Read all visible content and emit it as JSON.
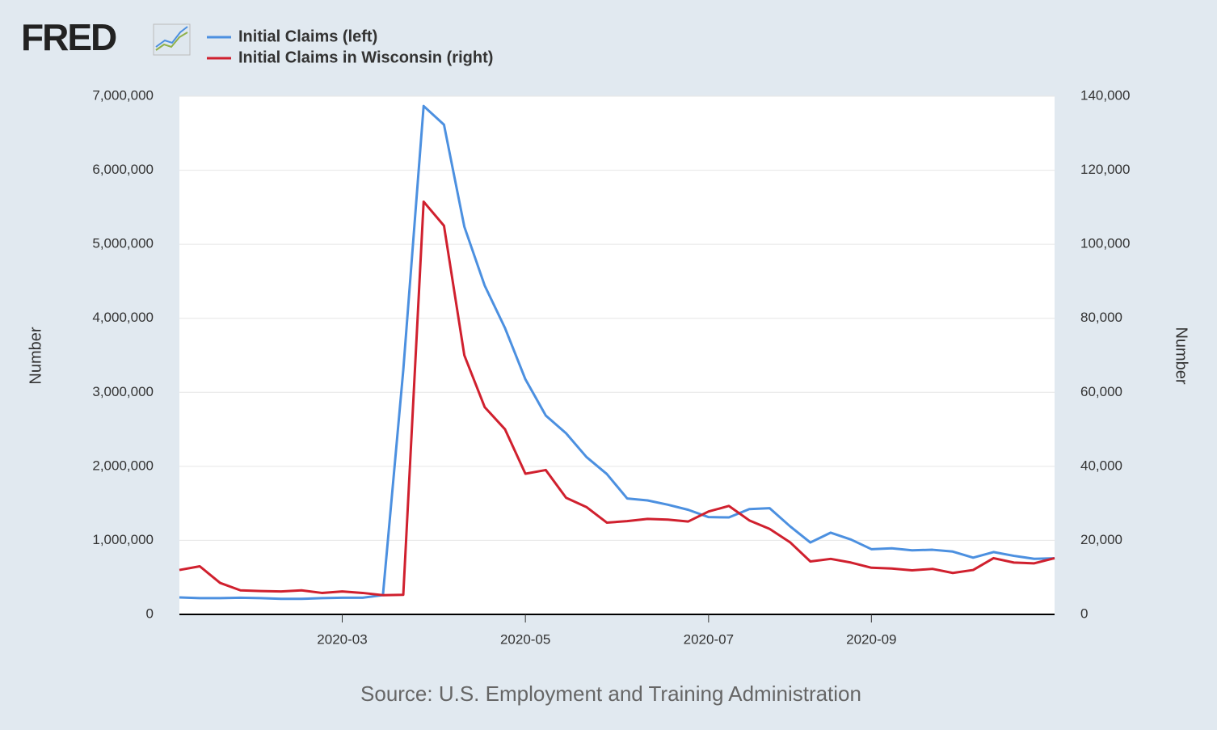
{
  "chart_data": {
    "type": "line",
    "logo": "FRED",
    "source": "Source: U.S. Employment and Training Administration",
    "y_label": "Number",
    "y2_label": "Number",
    "categories": [
      null,
      null,
      null,
      null,
      null,
      null,
      null,
      null,
      "2020-03",
      null,
      null,
      null,
      null,
      null,
      null,
      null,
      null,
      "2020-05",
      null,
      null,
      null,
      null,
      null,
      null,
      null,
      null,
      "2020-07",
      null,
      null,
      null,
      null,
      null,
      null,
      null,
      "2020-09",
      null,
      null,
      null,
      null,
      null,
      null,
      null,
      null,
      null
    ],
    "ylim": [
      0,
      7000000
    ],
    "yticks": [
      0,
      {
        "value": 1000000,
        "label": "1,000,000"
      },
      {
        "value": 2000000,
        "label": "2,000,000"
      },
      {
        "value": 3000000,
        "label": "3,000,000"
      },
      {
        "value": 4000000,
        "label": "4,000,000"
      },
      {
        "value": 5000000,
        "label": "5,000,000"
      },
      {
        "value": 6000000,
        "label": "6,000,000"
      },
      {
        "value": 7000000,
        "label": "7,000,000"
      }
    ],
    "y2lim": [
      0,
      140000
    ],
    "y2ticks": [
      0,
      {
        "value": 20000,
        "label": "20,000"
      },
      {
        "value": 40000,
        "label": "40,000"
      },
      {
        "value": 60000,
        "label": "60,000"
      },
      {
        "value": 80000,
        "label": "80,000"
      },
      {
        "value": 100000,
        "label": "100,000"
      },
      {
        "value": 120000,
        "label": "120,000"
      },
      {
        "value": 140000,
        "label": "140,000"
      }
    ],
    "grid": true,
    "series": [
      {
        "name": "Initial Claims (left)",
        "color": "#4c90e0",
        "axis": "y",
        "values": [
          230000,
          220000,
          220000,
          225000,
          220000,
          210000,
          210000,
          220000,
          225000,
          225000,
          260000,
          3300000,
          6867000,
          6615000,
          5237000,
          4442000,
          3867000,
          3176000,
          2687000,
          2446000,
          2126000,
          1897000,
          1566000,
          1540000,
          1482000,
          1413000,
          1314000,
          1310000,
          1422000,
          1435000,
          1191000,
          971000,
          1104000,
          1011000,
          881000,
          893000,
          866000,
          873000,
          849000,
          767000,
          842000,
          791000,
          751000,
          757000
        ]
      },
      {
        "name": "Initial Claims in Wisconsin (right)",
        "color": "#d0202e",
        "axis": "y2",
        "values": [
          12000,
          13000,
          8500,
          6500,
          6300,
          6200,
          6500,
          5800,
          6200,
          5800,
          5200,
          5300,
          111500,
          105000,
          70000,
          56000,
          50000,
          38000,
          39000,
          31500,
          29000,
          24800,
          25200,
          25800,
          25600,
          25100,
          27800,
          29300,
          25400,
          23100,
          19500,
          14300,
          15000,
          14000,
          12600,
          12400,
          11900,
          12300,
          11200,
          12000,
          15200,
          14000,
          13800,
          15200
        ]
      }
    ]
  }
}
